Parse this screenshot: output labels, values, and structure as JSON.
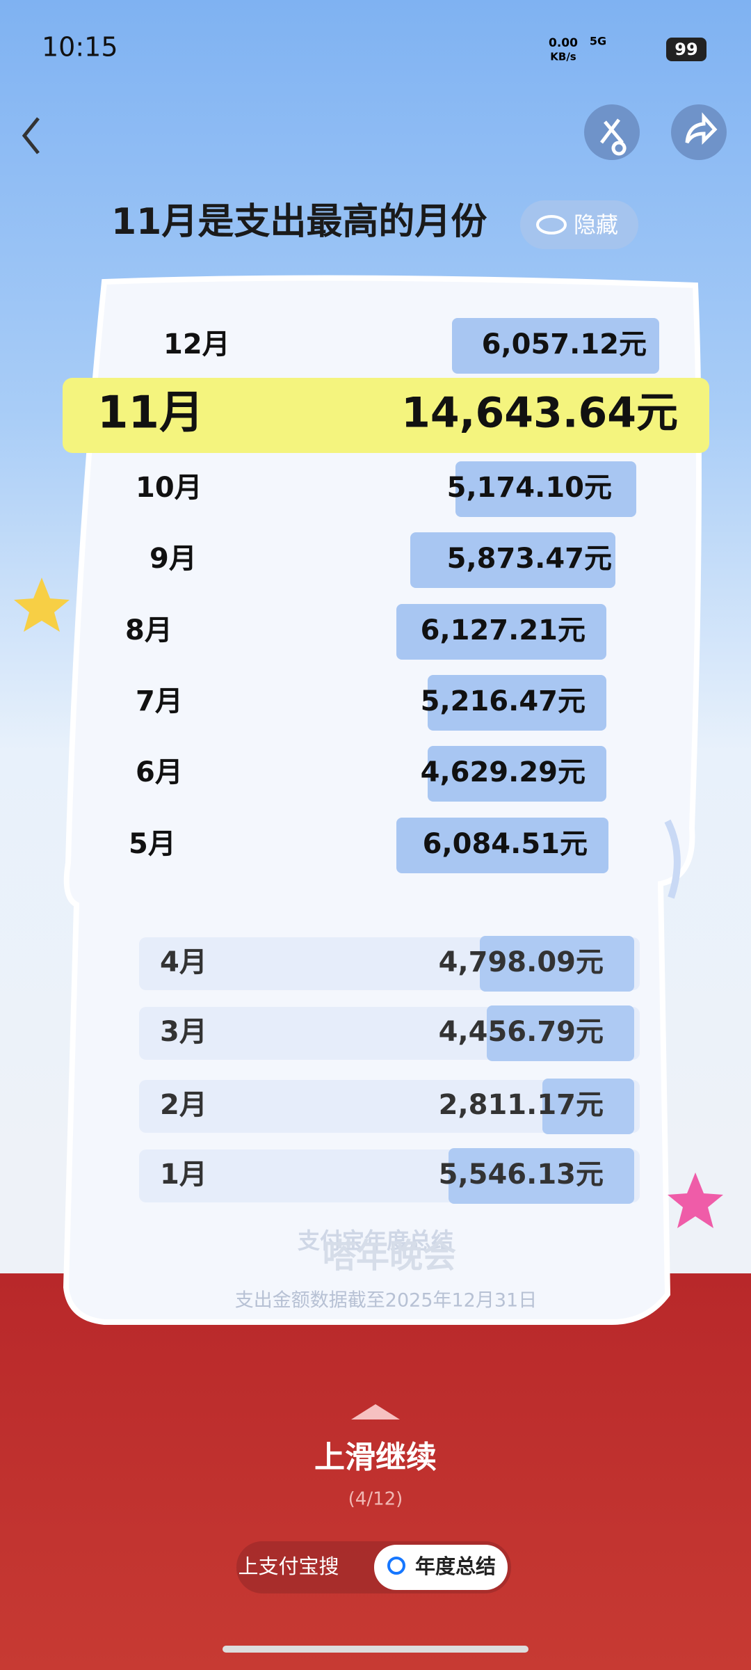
{
  "status": {
    "time": "10:15",
    "net": "0.00",
    "net_unit": "KB/s",
    "signal": "5G",
    "battery": "99"
  },
  "header": {
    "title": "11月是支出最高的月份",
    "hide": "隐藏"
  },
  "rows": [
    {
      "month": "12月",
      "amount": "6,057.12元"
    },
    {
      "month": "11月",
      "amount": "14,643.64元"
    },
    {
      "month": "10月",
      "amount": "5,174.10元"
    },
    {
      "month": "9月",
      "amount": "5,873.47元"
    },
    {
      "month": "8月",
      "amount": "6,127.21元"
    },
    {
      "month": "7月",
      "amount": "5,216.47元"
    },
    {
      "month": "6月",
      "amount": "4,629.29元"
    },
    {
      "month": "5月",
      "amount": "6,084.51元"
    },
    {
      "month": "4月",
      "amount": "4,798.09元"
    },
    {
      "month": "3月",
      "amount": "4,456.79元"
    },
    {
      "month": "2月",
      "amount": "2,811.17元"
    },
    {
      "month": "1月",
      "amount": "5,546.13元"
    }
  ],
  "footer": {
    "logo_small": "支付宝年度总结",
    "logo_big": "嗒年晚会",
    "note": "支出金额数据截至2025年12月31日",
    "swipe": "上滑继续",
    "page": "(4/12)",
    "search_prefix": "上支付宝搜",
    "search_term": "年度总结"
  }
}
